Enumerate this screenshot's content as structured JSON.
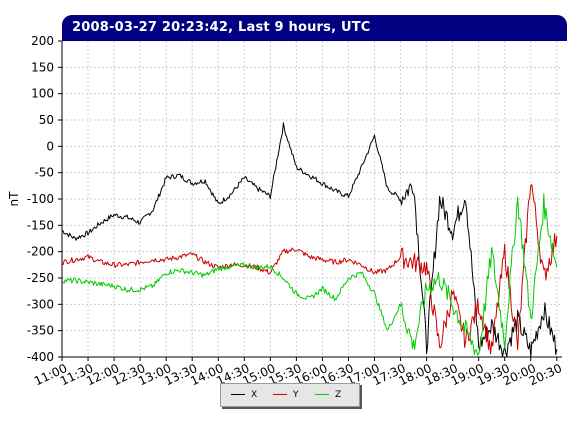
{
  "header": {
    "title": "2008-03-27 20:23:42, Last 9 hours, UTC"
  },
  "chart_data": {
    "type": "line",
    "title": "2008-03-27 20:23:42, Last 9 hours, UTC",
    "xlabel": "",
    "ylabel": "nT",
    "ylim": [
      -400,
      200
    ],
    "xlim": [
      "11:00",
      "20:30"
    ],
    "grid": true,
    "legend_position": "bottom",
    "y_ticks": [
      200,
      150,
      100,
      50,
      0,
      -50,
      -100,
      -150,
      -200,
      -250,
      -300,
      -350,
      -400
    ],
    "x_ticks": [
      "11:00",
      "11:30",
      "12:00",
      "12:30",
      "13:00",
      "13:30",
      "14:00",
      "14:30",
      "15:00",
      "15:30",
      "16:00",
      "16:30",
      "17:00",
      "17:30",
      "18:00",
      "18:30",
      "19:00",
      "19:30",
      "20:00",
      "20:30"
    ],
    "x": [
      "11:00",
      "11:15",
      "11:30",
      "11:45",
      "12:00",
      "12:15",
      "12:30",
      "12:45",
      "13:00",
      "13:15",
      "13:30",
      "13:45",
      "14:00",
      "14:15",
      "14:30",
      "14:45",
      "15:00",
      "15:15",
      "15:30",
      "15:45",
      "16:00",
      "16:15",
      "16:30",
      "16:45",
      "17:00",
      "17:15",
      "17:30",
      "17:45",
      "18:00",
      "18:15",
      "18:30",
      "18:45",
      "19:00",
      "19:15",
      "19:30",
      "19:45",
      "20:00",
      "20:15",
      "20:30"
    ],
    "series": [
      {
        "name": "X",
        "color": "#000000",
        "values": [
          -160,
          -175,
          -165,
          -145,
          -130,
          -135,
          -145,
          -120,
          -60,
          -55,
          -70,
          -65,
          -110,
          -90,
          -60,
          -80,
          -95,
          40,
          -40,
          -55,
          -70,
          -85,
          -95,
          -40,
          20,
          -80,
          -100,
          -70,
          -380,
          -100,
          -160,
          -90,
          -380,
          -340,
          -390,
          -330,
          -390,
          -310,
          -385
        ]
      },
      {
        "name": "Y",
        "color": "#cc0000",
        "values": [
          -220,
          -215,
          -210,
          -220,
          -225,
          -225,
          -220,
          -215,
          -215,
          -210,
          -205,
          -220,
          -230,
          -225,
          -225,
          -230,
          -240,
          -200,
          -195,
          -210,
          -215,
          -220,
          -215,
          -225,
          -240,
          -235,
          -210,
          -220,
          -230,
          -380,
          -280,
          -370,
          -300,
          -390,
          -200,
          -380,
          -60,
          -250,
          -170
        ]
      },
      {
        "name": "Z",
        "color": "#00cc00",
        "values": [
          -255,
          -255,
          -258,
          -262,
          -265,
          -272,
          -272,
          -265,
          -240,
          -235,
          -240,
          -245,
          -232,
          -228,
          -226,
          -230,
          -228,
          -250,
          -280,
          -290,
          -270,
          -290,
          -250,
          -240,
          -280,
          -350,
          -300,
          -380,
          -270,
          -250,
          -300,
          -350,
          -395,
          -200,
          -370,
          -100,
          -330,
          -110,
          -230
        ]
      }
    ]
  },
  "legend": {
    "items": [
      {
        "label": "X",
        "color": "#000000"
      },
      {
        "label": "Y",
        "color": "#cc0000"
      },
      {
        "label": "Z",
        "color": "#00cc00"
      }
    ]
  }
}
